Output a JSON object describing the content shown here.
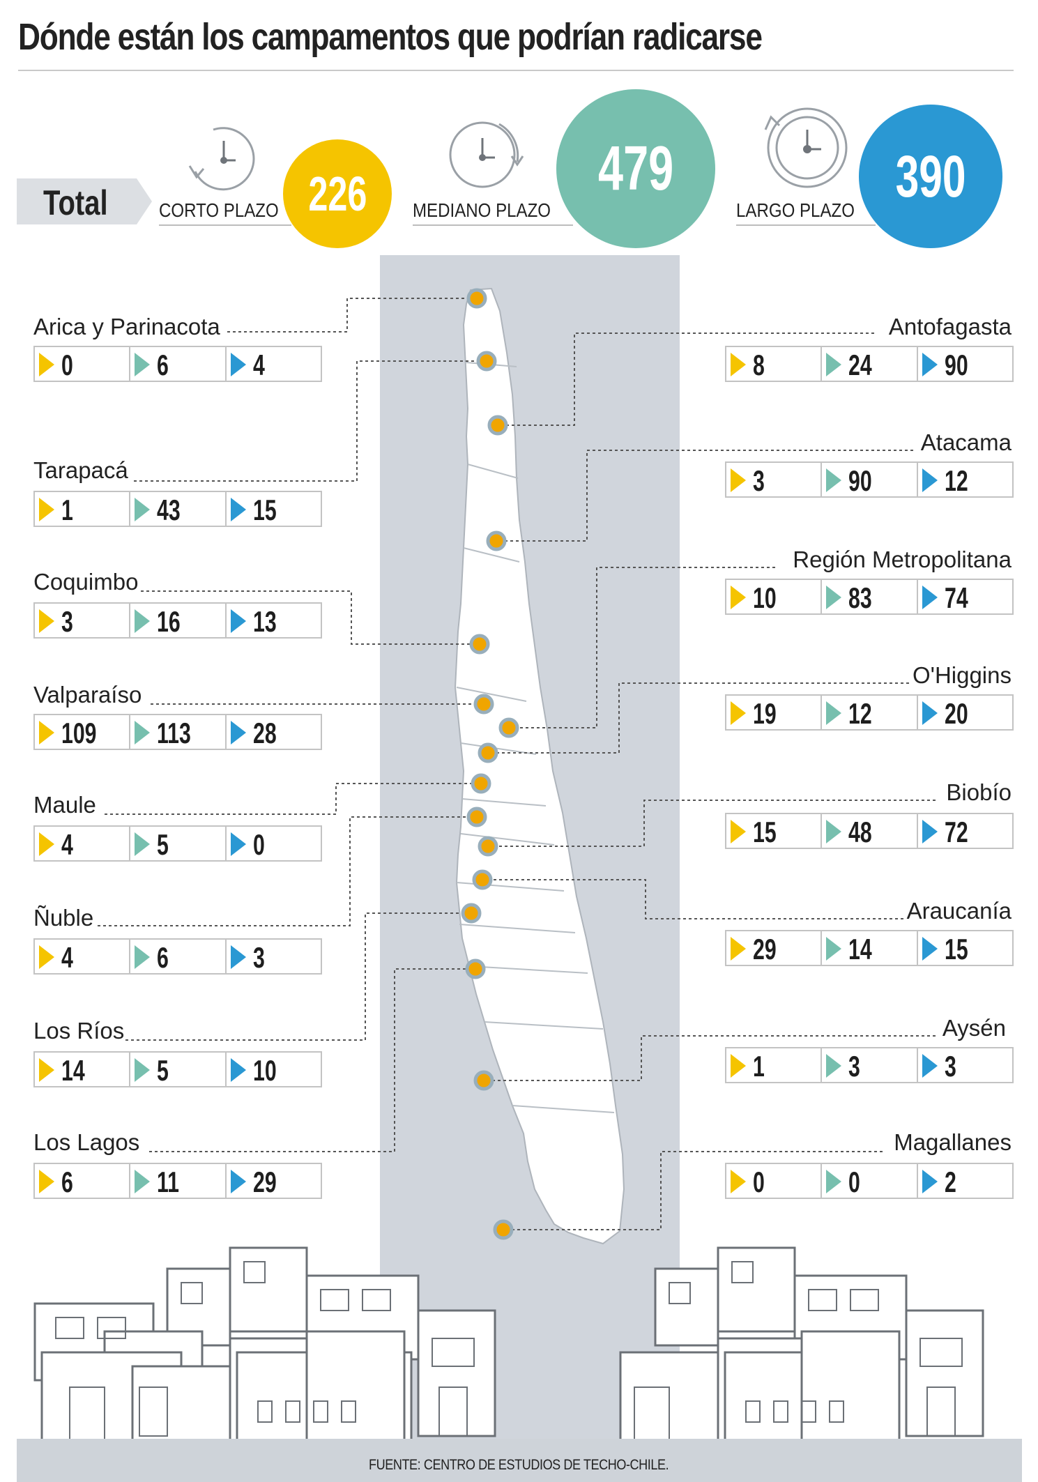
{
  "title": "Dónde están los campamentos que podrían radicarse",
  "total": {
    "label": "Total",
    "terms": [
      {
        "label": "CORTO PLAZO",
        "value": "226",
        "color": "#f5c400"
      },
      {
        "label": "MEDIANO PLAZO",
        "value": "479",
        "color": "#77bfae"
      },
      {
        "label": "LARGO PLAZO",
        "value": "390",
        "color": "#2a98d3"
      }
    ]
  },
  "colors": {
    "corto": "#f5c400",
    "mediano": "#77bfae",
    "largo": "#2a98d3",
    "dot": "#f0a500",
    "map": "#d0d5dc"
  },
  "regions_left": [
    {
      "name": "Arica y Parinacota",
      "values": [
        "0",
        "6",
        "4"
      ]
    },
    {
      "name": "Tarapacá",
      "values": [
        "1",
        "43",
        "15"
      ]
    },
    {
      "name": "Coquimbo",
      "values": [
        "3",
        "16",
        "13"
      ]
    },
    {
      "name": "Valparaíso",
      "values": [
        "109",
        "113",
        "28"
      ]
    },
    {
      "name": "Maule",
      "values": [
        "4",
        "5",
        "0"
      ]
    },
    {
      "name": "Ñuble",
      "values": [
        "4",
        "6",
        "3"
      ]
    },
    {
      "name": "Los Ríos",
      "values": [
        "14",
        "5",
        "10"
      ]
    },
    {
      "name": "Los Lagos",
      "values": [
        "6",
        "11",
        "29"
      ]
    }
  ],
  "regions_right": [
    {
      "name": "Antofagasta",
      "values": [
        "8",
        "24",
        "90"
      ]
    },
    {
      "name": "Atacama",
      "values": [
        "3",
        "90",
        "12"
      ]
    },
    {
      "name": "Región Metropolitana",
      "values": [
        "10",
        "83",
        "74"
      ]
    },
    {
      "name": "O'Higgins",
      "values": [
        "19",
        "12",
        "20"
      ]
    },
    {
      "name": "Biobío",
      "values": [
        "15",
        "48",
        "72"
      ]
    },
    {
      "name": "Araucanía",
      "values": [
        "29",
        "14",
        "15"
      ]
    },
    {
      "name": "Aysén",
      "values": [
        "1",
        "3",
        "3"
      ]
    },
    {
      "name": "Magallanes",
      "values": [
        "0",
        "0",
        "2"
      ]
    }
  ],
  "source": "FUENTE: CENTRO DE ESTUDIOS DE TECHO-CHILE."
}
